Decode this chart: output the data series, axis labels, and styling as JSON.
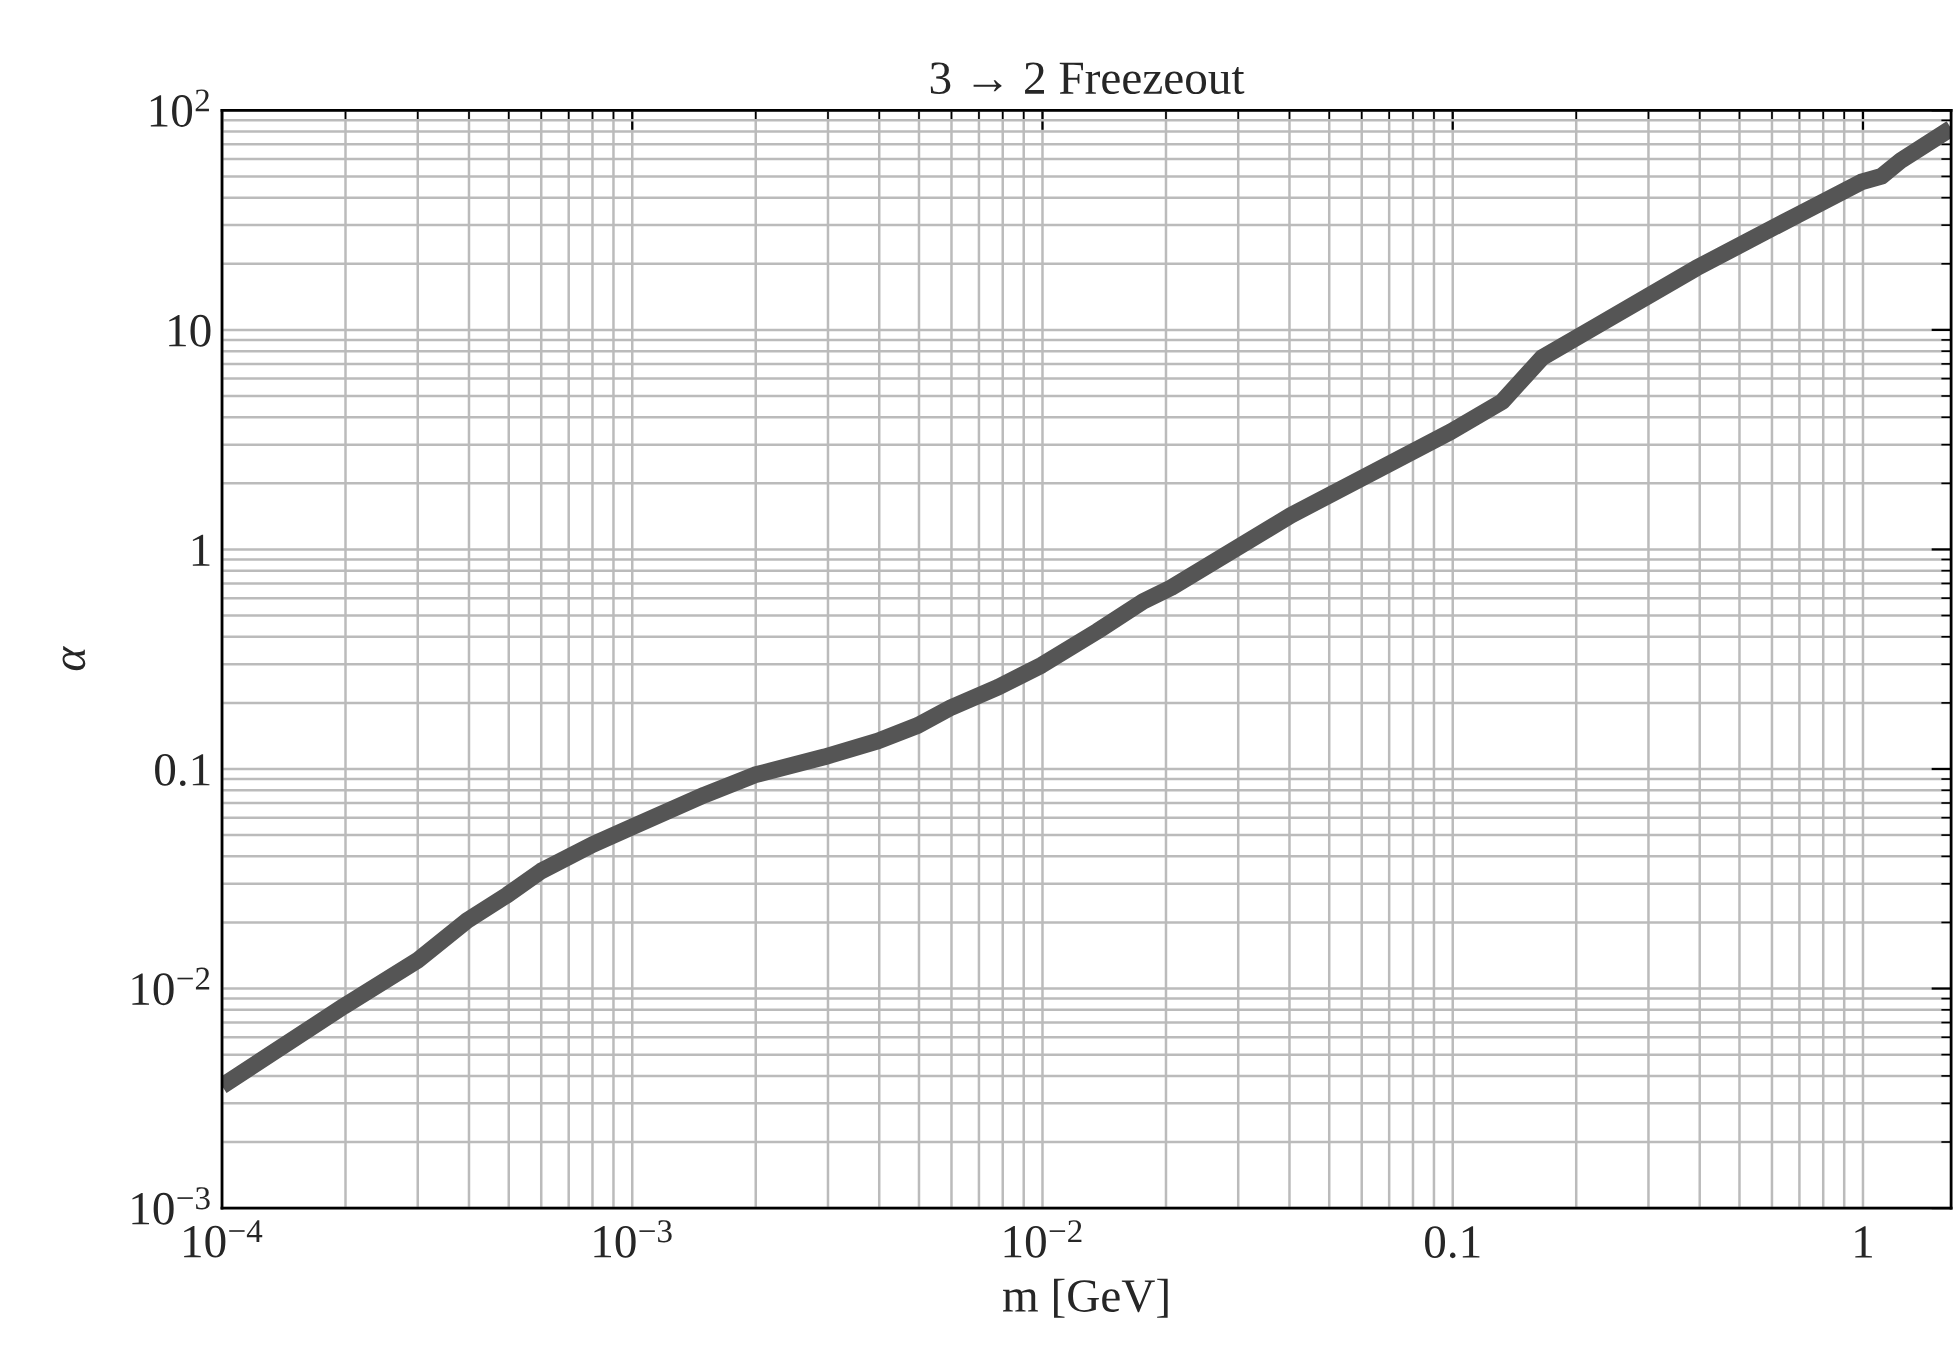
{
  "chart_data": {
    "type": "line",
    "title": "3 → 2 Freezeout",
    "xlabel": "m [GeV]",
    "ylabel": "α",
    "log": "xy",
    "grid": true,
    "xlim": [
      0.0001,
      1.64
    ],
    "ylim": [
      0.001,
      100
    ],
    "xticks": [
      {
        "value": 0.0001,
        "label": "10$^{−4}$"
      },
      {
        "value": 0.001,
        "label": "10$^{−3}$"
      },
      {
        "value": 0.01,
        "label": "10$^{−2}$"
      },
      0.1,
      1
    ],
    "yticks": [
      {
        "value": 0.001,
        "label": "10$^{−3}$"
      },
      {
        "value": 0.01,
        "label": "10$^{−2}$"
      },
      0.1,
      1,
      10,
      {
        "value": 100,
        "label": "10$^{2}$"
      }
    ],
    "series": [
      {
        "color": "#555555",
        "line_style": "solid",
        "marker": "none",
        "x": [
          0.0001,
          0.000198,
          0.000299,
          0.000396,
          0.000496,
          0.0006,
          0.0008,
          0.001,
          0.0015,
          0.00199,
          0.00294,
          0.00397,
          0.00497,
          0.006,
          0.0078,
          0.00995,
          0.0136,
          0.0176,
          0.0206,
          0.0403,
          0.099,
          0.132,
          0.165,
          0.224,
          0.392,
          0.685,
          0.99,
          1.11,
          1.24,
          1.64
        ],
        "values": [
          0.0036,
          0.0083,
          0.0134,
          0.0204,
          0.0267,
          0.0343,
          0.0452,
          0.0545,
          0.0762,
          0.094,
          0.1135,
          0.134,
          0.158,
          0.191,
          0.236,
          0.297,
          0.424,
          0.58,
          0.67,
          1.43,
          3.44,
          4.71,
          7.46,
          10.4,
          19.1,
          33.0,
          47.1,
          50.1,
          59.3,
          82.8
        ]
      }
    ]
  }
}
